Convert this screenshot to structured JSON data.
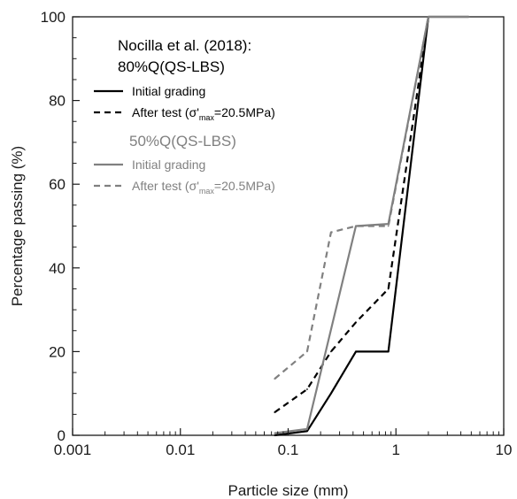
{
  "chart_data": {
    "type": "line",
    "xlabel": "Particle size (mm)",
    "ylabel": "Percentage passing (%)",
    "x_scale": "log",
    "xlim": [
      0.001,
      10
    ],
    "ylim": [
      0,
      100
    ],
    "x_ticks": [
      "0.001",
      "0.01",
      "0.1",
      "1",
      "10"
    ],
    "y_ticks": [
      "0",
      "20",
      "40",
      "60",
      "80",
      "100"
    ],
    "grid": false,
    "legend": {
      "placement": "top-left",
      "groups": [
        {
          "heading_line1": "Nocilla et al. (2018):",
          "heading_line2": "80%Q(QS-LBS)",
          "color": "#000000",
          "entry_initial": "Initial grading",
          "entry_after_prefix": "After test (σ'",
          "entry_after_sub": "max",
          "entry_after_suffix": "=20.5MPa)"
        },
        {
          "heading_line1": "50%Q(QS-LBS)",
          "color": "#808080",
          "entry_initial": "Initial grading",
          "entry_after_prefix": "After test (σ'",
          "entry_after_sub": "max",
          "entry_after_suffix": "=20.5MPa)"
        }
      ]
    },
    "series": [
      {
        "name": "80%Q(QS-LBS) Initial grading",
        "color": "#000000",
        "dash": "solid",
        "x": [
          0.075,
          0.15,
          0.25,
          0.425,
          0.85,
          2.0,
          4.75
        ],
        "y": [
          0,
          1,
          10,
          20,
          20,
          100,
          100
        ]
      },
      {
        "name": "80%Q(QS-LBS) After test (σ'max=20.5MPa)",
        "color": "#000000",
        "dash": "dashed",
        "x": [
          0.075,
          0.15,
          0.25,
          0.425,
          0.85,
          2.0
        ],
        "y": [
          5.5,
          11,
          20,
          27,
          35,
          100
        ]
      },
      {
        "name": "50%Q(QS-LBS) Initial grading",
        "color": "#808080",
        "dash": "solid",
        "x": [
          0.075,
          0.15,
          0.425,
          0.85,
          2.0,
          4.75
        ],
        "y": [
          0.5,
          1.5,
          50,
          50.5,
          100,
          100
        ]
      },
      {
        "name": "50%Q(QS-LBS) After test (σ'max=20.5MPa)",
        "color": "#808080",
        "dash": "dashed",
        "x": [
          0.075,
          0.15,
          0.25,
          0.425,
          0.85,
          2.0
        ],
        "y": [
          13.5,
          20,
          48.5,
          50,
          50,
          100
        ]
      }
    ]
  }
}
